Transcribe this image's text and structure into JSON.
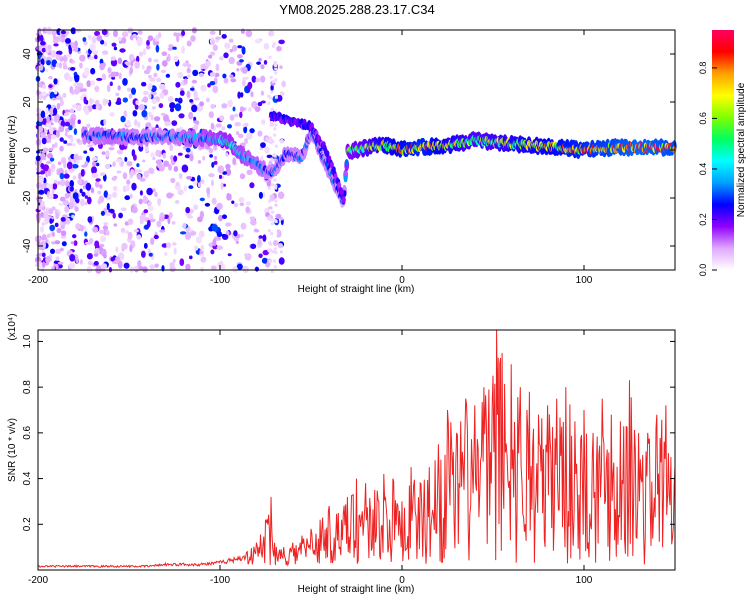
{
  "figure": {
    "title": "YM08.2025.288.23.17.C34"
  },
  "chart_data": [
    {
      "type": "heatmap",
      "xlabel": "Height of straight line (km)",
      "ylabel": "Frequency (Hz)",
      "xlim": [
        -200,
        150
      ],
      "ylim": [
        -50,
        50
      ],
      "xticks": [
        -200,
        -100,
        0,
        100
      ],
      "yticks": [
        -40,
        -20,
        0,
        20,
        40
      ],
      "colorbar": {
        "label": "Normalized spectral amplitude",
        "range": [
          0,
          0.95
        ],
        "ticks": [
          0.0,
          0.2,
          0.4,
          0.6,
          0.8
        ],
        "colors": [
          "#ffffff",
          "#e0a8ff",
          "#9000ff",
          "#0000ff",
          "#00a0ff",
          "#00ffff",
          "#00ff60",
          "#80ff00",
          "#ffff00",
          "#ffa000",
          "#ff0000",
          "#ff0060"
        ]
      },
      "ridge": [
        {
          "x": -175,
          "f": 6,
          "amp": 0.3
        },
        {
          "x": -160,
          "f": 6,
          "amp": 0.35
        },
        {
          "x": -145,
          "f": 5,
          "amp": 0.3
        },
        {
          "x": -130,
          "f": 6,
          "amp": 0.3
        },
        {
          "x": -118,
          "f": 5,
          "amp": 0.35
        },
        {
          "x": -105,
          "f": 5,
          "amp": 0.4
        },
        {
          "x": -96,
          "f": 4,
          "amp": 0.45
        },
        {
          "x": -88,
          "f": -2,
          "amp": 0.4
        },
        {
          "x": -80,
          "f": -6,
          "amp": 0.35
        },
        {
          "x": -72,
          "f": -10,
          "amp": 0.3
        },
        {
          "x": -64,
          "f": -2,
          "amp": 0.3
        },
        {
          "x": -55,
          "f": -3,
          "amp": 0.3
        },
        {
          "x": -50,
          "f": 8,
          "amp": 0.3
        },
        {
          "x": -44,
          "f": -2,
          "amp": 0.3
        },
        {
          "x": -38,
          "f": -12,
          "amp": 0.3
        },
        {
          "x": -32,
          "f": -22,
          "amp": 0.25
        },
        {
          "x": -30,
          "f": -1,
          "amp": 0.5
        },
        {
          "x": -20,
          "f": 1,
          "amp": 0.6
        },
        {
          "x": -10,
          "f": 2,
          "amp": 0.7
        },
        {
          "x": 0,
          "f": 0,
          "amp": 0.75
        },
        {
          "x": 10,
          "f": 1,
          "amp": 0.8
        },
        {
          "x": 25,
          "f": 2,
          "amp": 0.7
        },
        {
          "x": 40,
          "f": 4,
          "amp": 0.6
        },
        {
          "x": 55,
          "f": 3,
          "amp": 0.65
        },
        {
          "x": 70,
          "f": 2,
          "amp": 0.7
        },
        {
          "x": 85,
          "f": 1,
          "amp": 0.75
        },
        {
          "x": 100,
          "f": 0,
          "amp": 0.8
        },
        {
          "x": 115,
          "f": 1,
          "amp": 0.85
        },
        {
          "x": 130,
          "f": 1,
          "amp": 0.9
        },
        {
          "x": 150,
          "f": 1,
          "amp": 0.85
        }
      ],
      "upper_branch": [
        {
          "x": -72,
          "f": 15
        },
        {
          "x": -62,
          "f": 12
        },
        {
          "x": -50,
          "f": 10
        },
        {
          "x": -42,
          "f": 0
        },
        {
          "x": -36,
          "f": -12
        },
        {
          "x": -32,
          "f": -20
        }
      ]
    },
    {
      "type": "line",
      "xlabel": "Height of straight line (km)",
      "ylabel": "SNR (10 * v/v)",
      "y_multiplier": "(x10⁴)",
      "xlim": [
        -200,
        150
      ],
      "ylim": [
        0,
        1.05
      ],
      "xticks": [
        -200,
        -100,
        0,
        100
      ],
      "yticks": [
        0.2,
        0.4,
        0.6,
        0.8,
        1.0
      ],
      "ytick_labels": [
        "0.2",
        "0.4",
        "0.6",
        "0.8",
        "1.0"
      ],
      "color": "#ee2222",
      "series": [
        {
          "x": [
            -200,
            -190,
            -180,
            -170,
            -160,
            -150,
            -140,
            -130,
            -120,
            -110,
            -100,
            -95,
            -90,
            -85,
            -80,
            -75,
            -72,
            -70,
            -65,
            -60,
            -55,
            -50,
            -45,
            -40,
            -35,
            -30,
            -25,
            -20,
            -15,
            -10,
            -5,
            0,
            5,
            10,
            15,
            20,
            25,
            30,
            35,
            40,
            45,
            50,
            52,
            55,
            60,
            65,
            70,
            75,
            80,
            85,
            90,
            95,
            100,
            105,
            110,
            115,
            120,
            125,
            130,
            135,
            140,
            145,
            150
          ],
          "values": [
            0.02,
            0.02,
            0.02,
            0.02,
            0.02,
            0.02,
            0.02,
            0.03,
            0.03,
            0.03,
            0.04,
            0.05,
            0.06,
            0.08,
            0.12,
            0.22,
            0.32,
            0.12,
            0.1,
            0.12,
            0.15,
            0.18,
            0.22,
            0.28,
            0.25,
            0.32,
            0.4,
            0.38,
            0.35,
            0.42,
            0.4,
            0.3,
            0.45,
            0.38,
            0.45,
            0.55,
            0.7,
            0.6,
            0.75,
            0.72,
            0.8,
            0.85,
            1.05,
            0.95,
            0.9,
            0.8,
            0.78,
            0.68,
            0.72,
            0.75,
            0.8,
            0.65,
            0.7,
            0.6,
            0.75,
            0.68,
            0.65,
            0.83,
            0.6,
            0.6,
            0.68,
            0.72,
            0.45
          ]
        }
      ]
    }
  ]
}
